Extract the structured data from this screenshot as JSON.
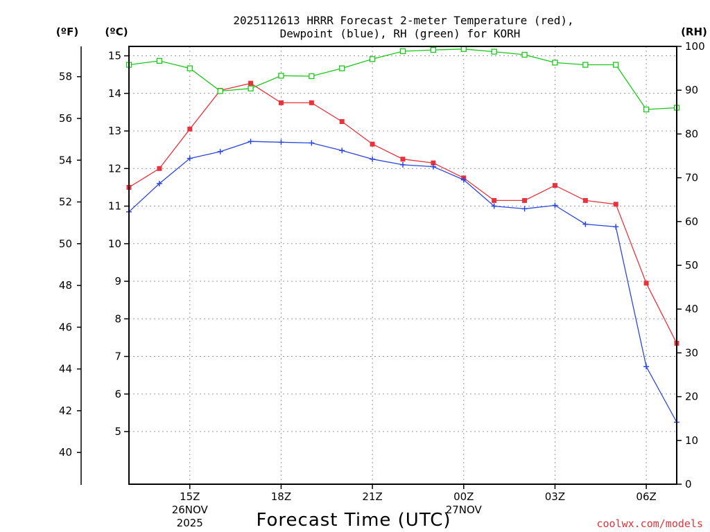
{
  "title_line1": "2025112613 HRRR Forecast 2-meter Temperature (red),",
  "title_line2": "Dewpoint (blue), RH (green) for KORH",
  "unit_f": "(ºF)",
  "unit_c": "(ºC)",
  "unit_rh": "(RH)",
  "xlabel": "Forecast Time (UTC)",
  "credit": "coolwx.com/models",
  "colors": {
    "temp": "#e8323c",
    "dewpoint": "#2b46e0",
    "rh": "#18c818"
  },
  "chart_data": {
    "type": "line",
    "title": "2025112613 HRRR Forecast 2-meter Temperature (red), Dewpoint (blue), RH (green) for KORH",
    "xlabel": "Forecast Time (UTC)",
    "x": [
      "13Z",
      "14Z",
      "15Z",
      "16Z",
      "17Z",
      "18Z",
      "19Z",
      "20Z",
      "21Z",
      "22Z",
      "23Z",
      "00Z",
      "01Z",
      "02Z",
      "03Z",
      "04Z",
      "05Z",
      "06Z",
      "07Z"
    ],
    "xlim": [
      13,
      31
    ],
    "xticks": [
      {
        "hour": 15,
        "label": "15Z",
        "sub": [
          "26NOV",
          "2025"
        ]
      },
      {
        "hour": 18,
        "label": "18Z",
        "sub": []
      },
      {
        "hour": 21,
        "label": "21Z",
        "sub": []
      },
      {
        "hour": 24,
        "label": "00Z",
        "sub": [
          "27NOV"
        ]
      },
      {
        "hour": 27,
        "label": "03Z",
        "sub": []
      },
      {
        "hour": 30,
        "label": "06Z",
        "sub": []
      }
    ],
    "celsius_axis": {
      "label": "(ºC)",
      "ylim": [
        3.6,
        15.25
      ],
      "ticks": [
        5,
        6,
        7,
        8,
        9,
        10,
        11,
        12,
        13,
        14,
        15
      ]
    },
    "fahrenheit_axis": {
      "label": "(ºF)",
      "ticks": [
        40,
        42,
        44,
        46,
        48,
        50,
        52,
        54,
        56,
        58
      ]
    },
    "rh_axis": {
      "label": "(RH)",
      "ylim": [
        0,
        100
      ],
      "ticks": [
        0,
        10,
        20,
        30,
        40,
        50,
        60,
        70,
        80,
        90,
        100
      ]
    },
    "series": [
      {
        "name": "Temperature",
        "axis": "celsius",
        "color": "#e8323c",
        "marker": "filled-square",
        "values": [
          11.5,
          12.0,
          13.05,
          14.08,
          14.27,
          13.75,
          13.75,
          13.25,
          12.65,
          12.25,
          12.15,
          11.75,
          11.15,
          11.15,
          11.55,
          11.15,
          11.05,
          8.95,
          7.35
        ]
      },
      {
        "name": "Dewpoint",
        "axis": "celsius",
        "color": "#2b46e0",
        "marker": "plus",
        "values": [
          10.85,
          11.6,
          12.27,
          12.45,
          12.72,
          12.7,
          12.68,
          12.48,
          12.25,
          12.1,
          12.05,
          11.7,
          11.0,
          10.93,
          11.02,
          10.52,
          10.45,
          6.73,
          5.25
        ]
      },
      {
        "name": "RH",
        "axis": "rh",
        "color": "#18c818",
        "marker": "open-square",
        "values": [
          95.8,
          96.7,
          95.0,
          89.8,
          90.4,
          93.3,
          93.2,
          95.0,
          97.1,
          98.9,
          99.2,
          99.4,
          98.8,
          98.1,
          96.3,
          95.8,
          95.8,
          85.6,
          86.0
        ]
      }
    ]
  }
}
